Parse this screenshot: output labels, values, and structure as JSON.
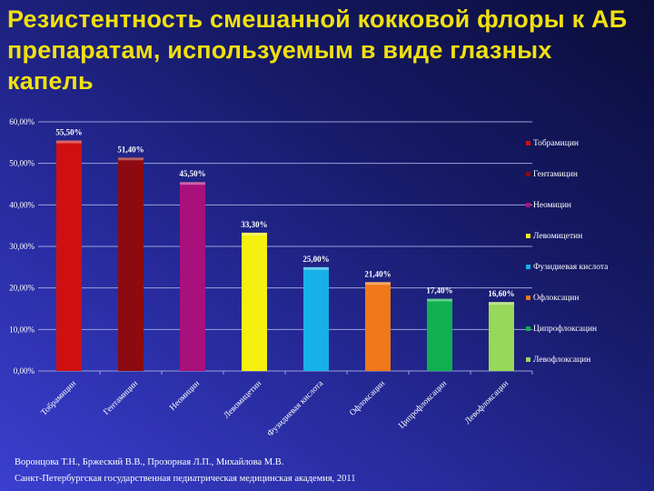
{
  "title": "Резистентность смешанной кокковой флоры к АБ препаратам, используемым в виде глазных капель",
  "credits": [
    "Воронцова Т.Н., Бржеский В.В., Прозорная Л.П., Михайлова М.В.",
    "Санкт-Петербургская государственная педиатрическая медицинская академия, 2011"
  ],
  "chart_data": {
    "type": "bar",
    "title": "Резистентность смешанной кокковой флоры к АБ препаратам, используемым в виде глазных капель",
    "xlabel": "",
    "ylabel": "",
    "ylim": [
      0,
      60
    ],
    "yticks": [
      "0,00%",
      "10,00%",
      "20,00%",
      "30,00%",
      "40,00%",
      "50,00%",
      "60,00%"
    ],
    "grid": true,
    "legend_position": "right",
    "categories": [
      "Тобрамицин",
      "Гентамицин",
      "Неомицин",
      "Левомицетин",
      "Фузидиевая кислота",
      "Офлоксацин",
      "Ципрофлоксацин",
      "Левофлоксацин"
    ],
    "values": [
      55.5,
      51.4,
      45.5,
      33.3,
      25.0,
      21.4,
      17.4,
      16.6
    ],
    "labels": [
      "55,50%",
      "51,40%",
      "45,50%",
      "33,30%",
      "25,00%",
      "21,40%",
      "17,40%",
      "16,60%"
    ],
    "colors": [
      "#d01010",
      "#8c0a10",
      "#a8107c",
      "#f5f010",
      "#18b0e8",
      "#f07818",
      "#10b050",
      "#98d858"
    ]
  }
}
